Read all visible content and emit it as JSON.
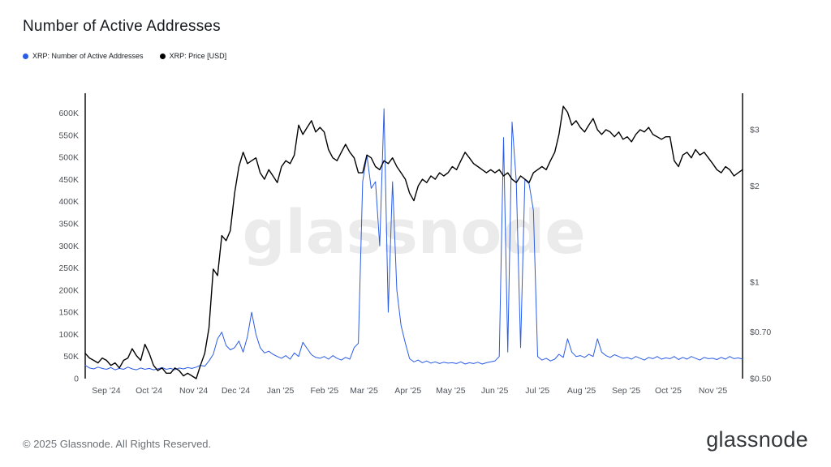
{
  "title": "Number of Active Addresses",
  "watermark": "glassnode",
  "legend": [
    {
      "label": "XRP: Number of Active Addresses",
      "color": "#2b5ce6"
    },
    {
      "label": "XRP: Price [USD]",
      "color": "#000000"
    }
  ],
  "footer": {
    "copyright": "© 2025 Glassnode. All Rights Reserved.",
    "brand": "glassnode"
  },
  "chart_data": {
    "type": "line",
    "title": "Number of Active Addresses",
    "grid": "off",
    "legend_position": "top-left",
    "x_ticks": [
      {
        "label": "Sep '24",
        "pos": 0.032
      },
      {
        "label": "Oct '24",
        "pos": 0.097
      },
      {
        "label": "Nov '24",
        "pos": 0.165
      },
      {
        "label": "Dec '24",
        "pos": 0.229
      },
      {
        "label": "Jan '25",
        "pos": 0.297
      },
      {
        "label": "Feb '25",
        "pos": 0.364
      },
      {
        "label": "Mar '25",
        "pos": 0.424
      },
      {
        "label": "Apr '25",
        "pos": 0.491
      },
      {
        "label": "May '25",
        "pos": 0.556
      },
      {
        "label": "Jun '25",
        "pos": 0.623
      },
      {
        "label": "Jul '25",
        "pos": 0.688
      },
      {
        "label": "Aug '25",
        "pos": 0.755
      },
      {
        "label": "Sep '25",
        "pos": 0.823
      },
      {
        "label": "Oct '25",
        "pos": 0.887
      },
      {
        "label": "Nov '25",
        "pos": 0.955
      }
    ],
    "left_axis": {
      "min": 0,
      "max": 645000,
      "ticks": [
        {
          "label": "0",
          "value": 0
        },
        {
          "label": "50K",
          "value": 50000
        },
        {
          "label": "100K",
          "value": 100000
        },
        {
          "label": "150K",
          "value": 150000
        },
        {
          "label": "200K",
          "value": 200000
        },
        {
          "label": "250K",
          "value": 250000
        },
        {
          "label": "300K",
          "value": 300000
        },
        {
          "label": "350K",
          "value": 350000
        },
        {
          "label": "400K",
          "value": 400000
        },
        {
          "label": "450K",
          "value": 450000
        },
        {
          "label": "500K",
          "value": 500000
        },
        {
          "label": "550K",
          "value": 550000
        },
        {
          "label": "600K",
          "value": 600000
        }
      ]
    },
    "right_axis": {
      "scale": "log",
      "min": 0.5,
      "max": 3.9,
      "ticks": [
        {
          "label": "$0.50",
          "value": 0.5
        },
        {
          "label": "$0.70",
          "value": 0.7
        },
        {
          "label": "$1",
          "value": 1
        },
        {
          "label": "$2",
          "value": 2
        },
        {
          "label": "$3",
          "value": 3
        }
      ]
    },
    "series": [
      {
        "name": "XRP: Number of Active Addresses",
        "axis": "left",
        "color": "#2b5ce6",
        "width": 1,
        "values": [
          30000,
          24000,
          22000,
          26000,
          23000,
          21000,
          25000,
          20000,
          23000,
          21000,
          26000,
          22000,
          20000,
          24000,
          21000,
          23000,
          20000,
          22000,
          25000,
          21000,
          23000,
          20000,
          24000,
          22000,
          25000,
          23000,
          26000,
          30000,
          28000,
          40000,
          55000,
          90000,
          105000,
          75000,
          65000,
          70000,
          85000,
          60000,
          95000,
          150000,
          100000,
          70000,
          58000,
          62000,
          55000,
          50000,
          46000,
          52000,
          44000,
          58000,
          50000,
          82000,
          68000,
          54000,
          48000,
          46000,
          50000,
          44000,
          52000,
          46000,
          42000,
          48000,
          44000,
          70000,
          80000,
          445000,
          505000,
          430000,
          445000,
          300000,
          610000,
          150000,
          445000,
          200000,
          120000,
          80000,
          45000,
          38000,
          42000,
          36000,
          40000,
          35000,
          38000,
          34000,
          37000,
          35000,
          36000,
          34000,
          38000,
          33000,
          36000,
          34000,
          37000,
          33000,
          36000,
          38000,
          40000,
          50000,
          545000,
          60000,
          580000,
          445000,
          70000,
          450000,
          440000,
          380000,
          50000,
          42000,
          46000,
          40000,
          44000,
          55000,
          48000,
          90000,
          60000,
          50000,
          52000,
          48000,
          55000,
          50000,
          90000,
          60000,
          52000,
          48000,
          54000,
          50000,
          46000,
          48000,
          44000,
          50000,
          46000,
          42000,
          48000,
          45000,
          50000,
          44000,
          47000,
          45000,
          50000,
          43000,
          48000,
          44000,
          50000,
          46000,
          42000,
          48000,
          45000,
          46000,
          43000,
          48000,
          44000,
          50000,
          45000,
          47000,
          44000
        ]
      },
      {
        "name": "XRP: Price [USD]",
        "axis": "right",
        "color": "#000000",
        "width": 1.4,
        "values": [
          0.6,
          0.58,
          0.57,
          0.56,
          0.58,
          0.57,
          0.55,
          0.56,
          0.54,
          0.57,
          0.58,
          0.62,
          0.59,
          0.57,
          0.64,
          0.6,
          0.55,
          0.53,
          0.54,
          0.52,
          0.52,
          0.54,
          0.53,
          0.51,
          0.52,
          0.51,
          0.5,
          0.55,
          0.6,
          0.72,
          1.1,
          1.05,
          1.4,
          1.35,
          1.45,
          1.9,
          2.3,
          2.55,
          2.35,
          2.4,
          2.45,
          2.2,
          2.1,
          2.25,
          2.15,
          2.05,
          2.3,
          2.4,
          2.35,
          2.5,
          3.1,
          2.9,
          3.05,
          3.2,
          2.95,
          3.05,
          2.95,
          2.6,
          2.45,
          2.4,
          2.55,
          2.7,
          2.55,
          2.45,
          2.2,
          2.2,
          2.5,
          2.45,
          2.3,
          2.25,
          2.4,
          2.35,
          2.45,
          2.3,
          2.2,
          2.1,
          1.9,
          1.8,
          2.0,
          2.1,
          2.05,
          2.15,
          2.1,
          2.2,
          2.15,
          2.2,
          2.3,
          2.25,
          2.4,
          2.55,
          2.45,
          2.35,
          2.3,
          2.25,
          2.2,
          2.25,
          2.2,
          2.25,
          2.15,
          2.2,
          2.1,
          2.05,
          2.15,
          2.1,
          2.05,
          2.2,
          2.25,
          2.3,
          2.25,
          2.4,
          2.55,
          2.9,
          3.55,
          3.4,
          3.1,
          3.2,
          3.05,
          2.95,
          3.1,
          3.25,
          3.0,
          2.9,
          3.0,
          2.95,
          2.85,
          2.95,
          2.8,
          2.85,
          2.75,
          2.9,
          3.0,
          2.95,
          3.05,
          2.9,
          2.85,
          2.8,
          2.85,
          2.85,
          2.4,
          2.3,
          2.5,
          2.55,
          2.45,
          2.6,
          2.5,
          2.55,
          2.45,
          2.35,
          2.25,
          2.2,
          2.3,
          2.25,
          2.15,
          2.2,
          2.25
        ]
      }
    ]
  }
}
